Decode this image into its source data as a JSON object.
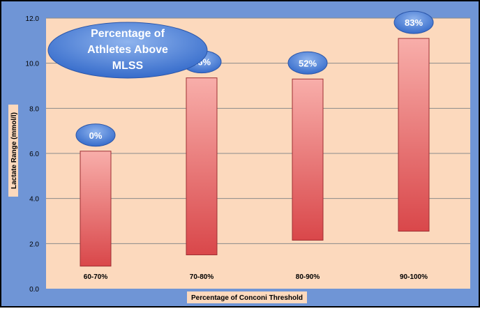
{
  "chart_data": {
    "type": "bar",
    "subtype": "floating-range",
    "categories": [
      "60-70%",
      "70-80%",
      "80-90%",
      "90-100%"
    ],
    "series": [
      {
        "low": [
          1.0,
          1.5,
          2.15,
          2.55
        ],
        "high": [
          6.1,
          9.35,
          9.3,
          11.1
        ]
      }
    ],
    "bar_labels": [
      "0%",
      "36%",
      "52%",
      "83%"
    ],
    "annotation": "Percentage of Athletes Above MLSS",
    "annotation_lines": [
      "Percentage of",
      "Athletes Above",
      "MLSS"
    ],
    "xlabel": "Percentage of Conconi Threshold",
    "ylabel": "Lactate Range (mmol/l)",
    "ylim": [
      0,
      12
    ],
    "yticks": [
      "0.0",
      "2.0",
      "4.0",
      "6.0",
      "8.0",
      "10.0",
      "12.0"
    ],
    "grid": true,
    "colors": {
      "frame": "#6f95d6",
      "plot_bg": "#fcd9bd",
      "bar_top": "#f8aeaa",
      "bar_bottom": "#d9474a",
      "bubble_light": "#8fb4ee",
      "bubble_dark": "#2f66c8",
      "xlabel_bg": "#fcd9bd"
    }
  }
}
